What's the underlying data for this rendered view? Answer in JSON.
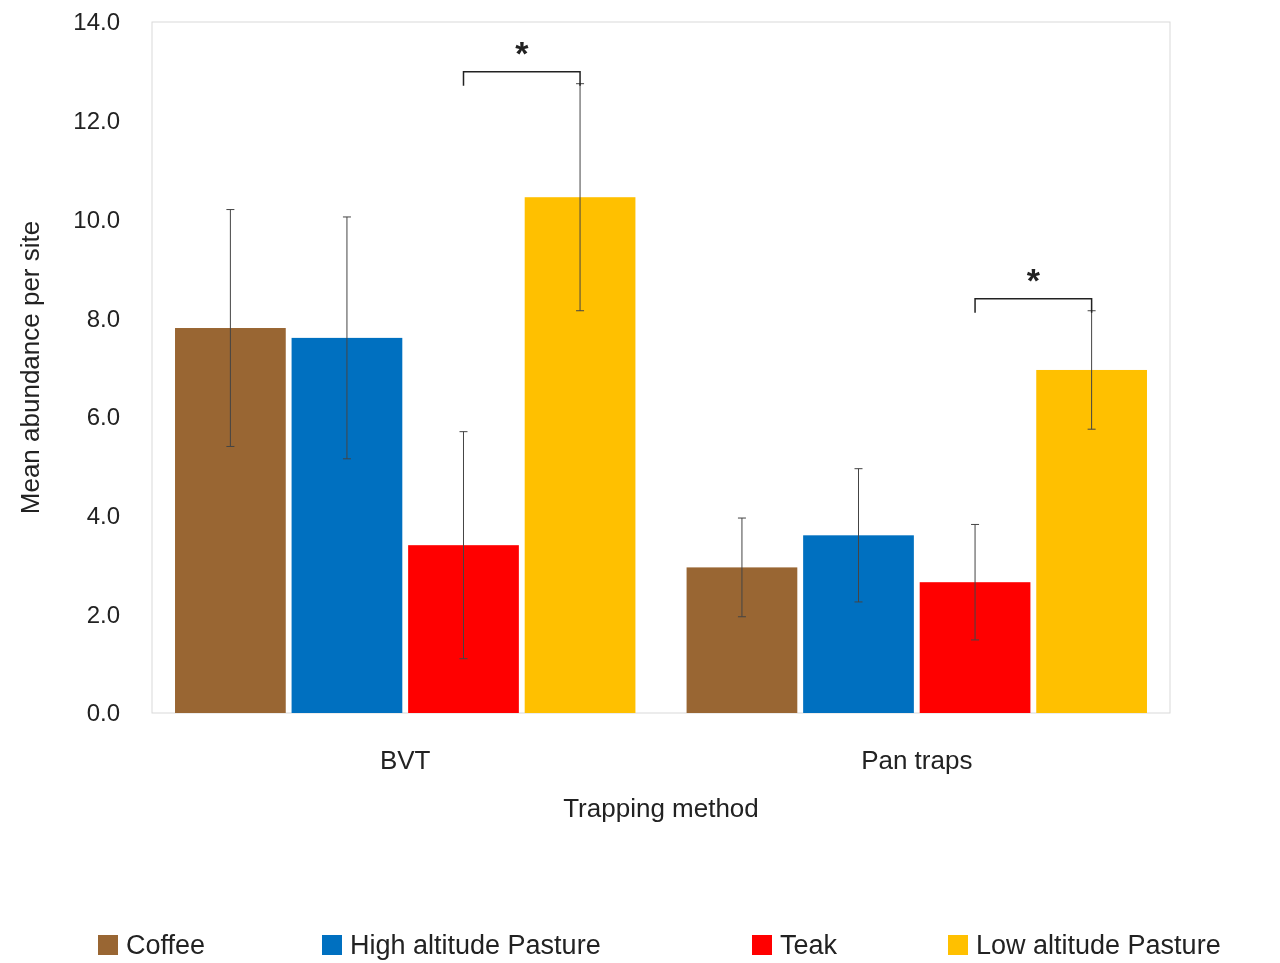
{
  "chart_data": {
    "type": "bar",
    "xlabel": "Trapping method",
    "ylabel": "Mean abundance per site",
    "categories": [
      "BVT",
      "Pan traps"
    ],
    "series": [
      {
        "name": "Coffee",
        "color": "#996633",
        "values": [
          7.8,
          2.95
        ],
        "errors": [
          2.4,
          1.0
        ]
      },
      {
        "name": "High altitude Pasture",
        "color": "#0070c0",
        "values": [
          7.6,
          3.6
        ],
        "errors": [
          2.45,
          1.35
        ]
      },
      {
        "name": "Teak",
        "color": "#ff0000",
        "values": [
          3.4,
          2.65
        ],
        "errors": [
          2.3,
          1.17
        ]
      },
      {
        "name": "Low altitude Pasture",
        "color": "#ffc000",
        "values": [
          10.45,
          6.95
        ],
        "errors": [
          2.3,
          1.2
        ]
      }
    ],
    "ylim": [
      0,
      14
    ],
    "yticks": [
      {
        "value": 0,
        "label": "0.0"
      },
      {
        "value": 2,
        "label": "2.0"
      },
      {
        "value": 4,
        "label": "4.0"
      },
      {
        "value": 6,
        "label": "6.0"
      },
      {
        "value": 8,
        "label": "8.0"
      },
      {
        "value": 10,
        "label": "10.0"
      },
      {
        "value": 12,
        "label": "12.0"
      },
      {
        "value": 14,
        "label": "14.0"
      }
    ],
    "annotations": [
      "*",
      "*"
    ],
    "legend": "bottom",
    "grid": false
  }
}
